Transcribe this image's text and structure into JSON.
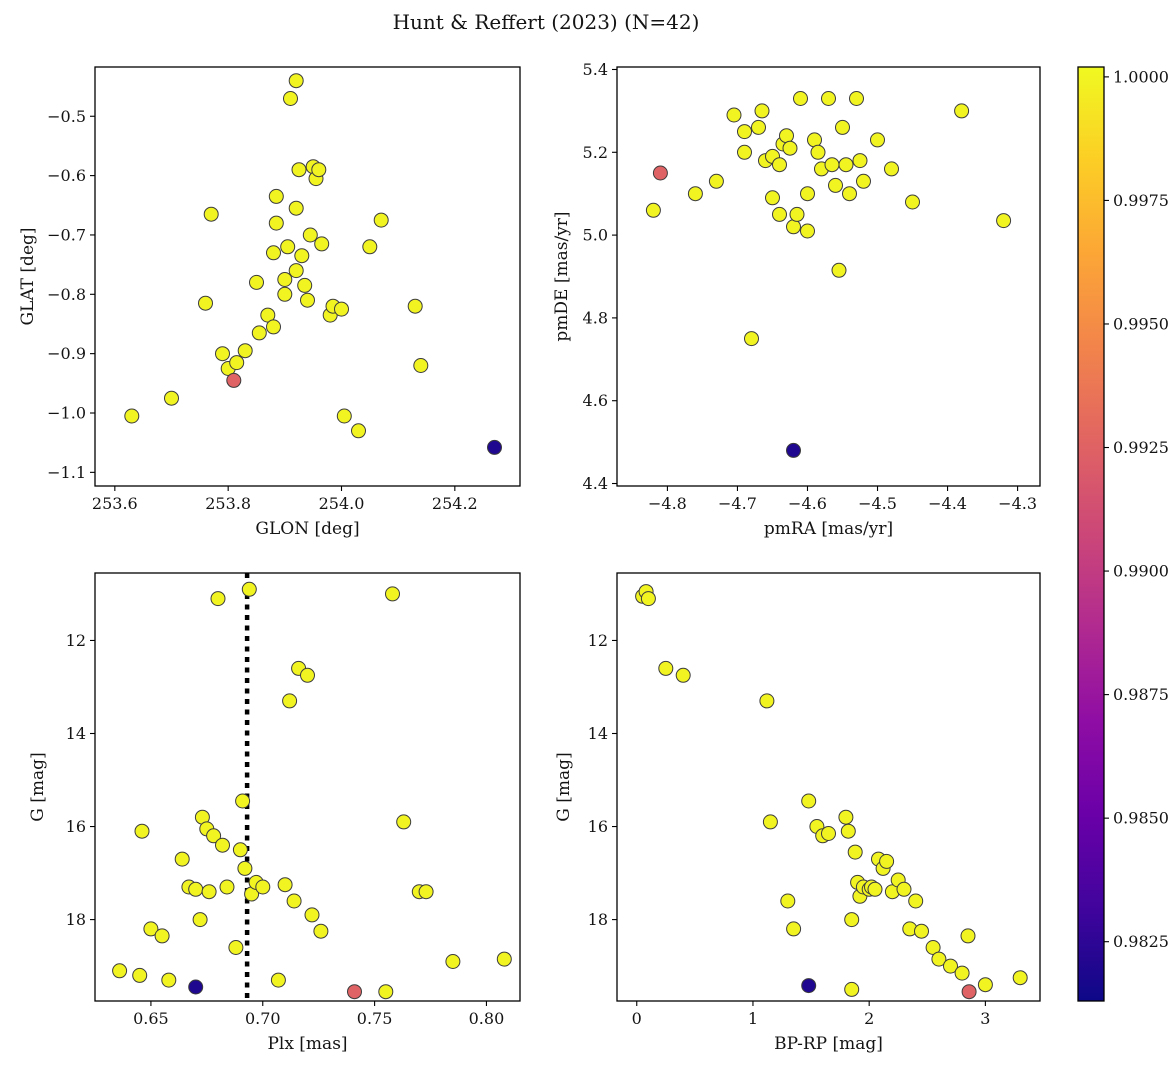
{
  "figure": {
    "title": "Hunt & Reffert (2023) (N=42)"
  },
  "chart_data": {
    "type": "scatter",
    "title": "Hunt & Reffert (2023) (N=42)",
    "n_stars": 42,
    "colormap": "plasma",
    "marker_edge_color": "#3c3c3c",
    "colorbar": {
      "vmin": 0.9813,
      "vmax": 1.0002,
      "tick_values": [
        1.0,
        0.9975,
        0.995,
        0.9925,
        0.99,
        0.9875,
        0.985,
        0.9825
      ],
      "tick_labels": [
        "1.0000",
        "0.9975",
        "0.9950",
        "0.9925",
        "0.9900",
        "0.9875",
        "0.9850",
        "0.9825"
      ]
    },
    "membership_prob": [
      1.0,
      1.0,
      1.0,
      1.0,
      1.0,
      1.0,
      1.0,
      1.0,
      1.0,
      1.0,
      1.0,
      1.0,
      1.0,
      1.0,
      1.0,
      1.0,
      1.0,
      1.0,
      1.0,
      1.0,
      1.0,
      1.0,
      1.0,
      1.0,
      1.0,
      1.0,
      1.0,
      1.0,
      1.0,
      1.0,
      1.0,
      1.0,
      1.0,
      1.0,
      1.0,
      1.0,
      1.0,
      1.0,
      1.0,
      1.0,
      0.9925,
      0.982
    ],
    "panels": [
      {
        "name": "glat-vs-glon",
        "xlabel": "GLON [deg]",
        "ylabel": "GLAT [deg]",
        "xlim": [
          253.565,
          254.315
        ],
        "ylim_bottom_top": [
          -1.123,
          -0.417
        ],
        "xtick_values": [
          253.6,
          253.8,
          254.0,
          254.2
        ],
        "xtick_labels": [
          "253.6",
          "253.8",
          "254.0",
          "254.2"
        ],
        "ytick_values": [
          -1.1,
          -1.0,
          -0.9,
          -0.8,
          -0.7,
          -0.6,
          -0.5
        ],
        "ytick_labels": [
          "−1.1",
          "−1.0",
          "−0.9",
          "−0.8",
          "−0.7",
          "−0.6",
          "−0.5"
        ],
        "x": [
          253.63,
          253.7,
          253.76,
          253.77,
          253.79,
          253.8,
          253.815,
          253.83,
          253.855,
          253.87,
          253.88,
          253.88,
          253.885,
          253.9,
          253.9,
          253.905,
          253.91,
          253.92,
          253.92,
          253.925,
          253.93,
          253.935,
          253.94,
          253.95,
          253.955,
          253.96,
          253.965,
          253.98,
          253.985,
          254.0,
          254.005,
          254.03,
          254.05,
          254.07,
          254.13,
          254.14,
          253.85,
          253.92,
          253.945,
          253.885,
          253.81,
          254.27
        ],
        "y": [
          -1.005,
          -0.975,
          -0.815,
          -0.665,
          -0.9,
          -0.925,
          -0.915,
          -0.895,
          -0.865,
          -0.835,
          -0.855,
          -0.73,
          -0.635,
          -0.775,
          -0.8,
          -0.72,
          -0.47,
          -0.44,
          -0.655,
          -0.59,
          -0.735,
          -0.785,
          -0.81,
          -0.585,
          -0.605,
          -0.59,
          -0.715,
          -0.835,
          -0.82,
          -0.825,
          -1.005,
          -1.03,
          -0.72,
          -0.675,
          -0.82,
          -0.92,
          -0.78,
          -0.76,
          -0.7,
          -0.68,
          -0.945,
          -1.058
        ]
      },
      {
        "name": "pmde-vs-pmra",
        "xlabel": "pmRA [mas/yr]",
        "ylabel": "pmDE [mas/yr]",
        "xlim": [
          -4.872,
          -4.268
        ],
        "ylim_bottom_top": [
          4.394,
          5.406
        ],
        "xtick_values": [
          -4.8,
          -4.7,
          -4.6,
          -4.5,
          -4.4,
          -4.3
        ],
        "xtick_labels": [
          "−4.8",
          "−4.7",
          "−4.6",
          "−4.5",
          "−4.4",
          "−4.3"
        ],
        "ytick_values": [
          4.4,
          4.6,
          4.8,
          5.0,
          5.2,
          5.4
        ],
        "ytick_labels": [
          "4.4",
          "4.6",
          "4.8",
          "5.0",
          "5.2",
          "5.4"
        ],
        "x": [
          -4.82,
          -4.76,
          -4.73,
          -4.705,
          -4.69,
          -4.69,
          -4.68,
          -4.67,
          -4.665,
          -4.66,
          -4.65,
          -4.65,
          -4.64,
          -4.64,
          -4.635,
          -4.63,
          -4.625,
          -4.62,
          -4.615,
          -4.61,
          -4.6,
          -4.6,
          -4.59,
          -4.585,
          -4.58,
          -4.57,
          -4.565,
          -4.56,
          -4.555,
          -4.55,
          -4.545,
          -4.54,
          -4.53,
          -4.525,
          -4.52,
          -4.5,
          -4.48,
          -4.45,
          -4.38,
          -4.32,
          -4.81,
          -4.62
        ],
        "y": [
          5.06,
          5.1,
          5.13,
          5.29,
          5.25,
          5.2,
          4.75,
          5.26,
          5.3,
          5.18,
          5.19,
          5.09,
          5.17,
          5.05,
          5.22,
          5.24,
          5.21,
          5.02,
          5.05,
          5.33,
          5.01,
          5.1,
          5.23,
          5.2,
          5.16,
          5.33,
          5.17,
          5.12,
          4.915,
          5.26,
          5.17,
          5.1,
          5.33,
          5.18,
          5.13,
          5.23,
          5.16,
          5.08,
          5.3,
          5.035,
          5.15,
          4.48
        ]
      },
      {
        "name": "g-vs-plx",
        "xlabel": "Plx [mas]",
        "ylabel": "G [mag]",
        "xlim": [
          0.625,
          0.815
        ],
        "ylim_bottom_top": [
          19.75,
          10.55
        ],
        "vline_x": 0.693,
        "xtick_values": [
          0.65,
          0.7,
          0.75,
          0.8
        ],
        "xtick_labels": [
          "0.65",
          "0.70",
          "0.75",
          "0.80"
        ],
        "ytick_values": [
          12,
          14,
          16,
          18
        ],
        "ytick_labels": [
          "12",
          "14",
          "16",
          "18"
        ],
        "x": [
          0.636,
          0.645,
          0.646,
          0.65,
          0.655,
          0.658,
          0.664,
          0.667,
          0.67,
          0.672,
          0.673,
          0.675,
          0.676,
          0.678,
          0.68,
          0.682,
          0.684,
          0.688,
          0.69,
          0.691,
          0.692,
          0.694,
          0.695,
          0.697,
          0.7,
          0.707,
          0.71,
          0.712,
          0.714,
          0.716,
          0.72,
          0.722,
          0.726,
          0.755,
          0.758,
          0.763,
          0.77,
          0.773,
          0.785,
          0.808,
          0.741,
          0.67
        ],
        "y": [
          19.1,
          19.2,
          16.1,
          18.2,
          18.35,
          19.3,
          16.7,
          17.3,
          17.35,
          18.0,
          15.8,
          16.05,
          17.4,
          16.2,
          11.1,
          16.4,
          17.3,
          18.6,
          16.5,
          15.45,
          16.9,
          10.9,
          17.45,
          17.2,
          17.3,
          19.3,
          17.25,
          13.3,
          17.6,
          12.6,
          12.75,
          17.9,
          18.25,
          19.55,
          11.0,
          15.9,
          17.4,
          17.4,
          18.9,
          18.85,
          19.55,
          19.45
        ]
      },
      {
        "name": "g-vs-bprp",
        "xlabel": "BP-RP [mag]",
        "ylabel": "G [mag]",
        "xlim": [
          -0.17,
          3.47
        ],
        "ylim_bottom_top": [
          19.75,
          10.55
        ],
        "xtick_values": [
          0,
          1,
          2,
          3
        ],
        "xtick_labels": [
          "0",
          "1",
          "2",
          "3"
        ],
        "ytick_values": [
          12,
          14,
          16,
          18
        ],
        "ytick_labels": [
          "12",
          "14",
          "16",
          "18"
        ],
        "x": [
          0.05,
          0.08,
          0.1,
          0.25,
          0.4,
          1.12,
          1.15,
          1.3,
          1.35,
          1.48,
          1.55,
          1.6,
          1.65,
          1.8,
          1.82,
          1.85,
          1.85,
          1.88,
          1.9,
          1.92,
          1.95,
          2.0,
          2.02,
          2.05,
          2.08,
          2.12,
          2.15,
          2.2,
          2.25,
          2.3,
          2.35,
          2.4,
          2.45,
          2.55,
          2.6,
          2.7,
          2.8,
          2.85,
          3.0,
          3.3,
          2.86,
          1.48
        ],
        "y": [
          11.05,
          10.95,
          11.1,
          12.6,
          12.75,
          13.3,
          15.9,
          17.6,
          18.2,
          15.45,
          16.0,
          16.2,
          16.15,
          15.8,
          16.1,
          18.0,
          19.5,
          16.55,
          17.2,
          17.5,
          17.3,
          17.35,
          17.3,
          17.35,
          16.7,
          16.9,
          16.75,
          17.4,
          17.15,
          17.35,
          18.2,
          17.6,
          18.25,
          18.6,
          18.85,
          19.0,
          19.15,
          18.35,
          19.4,
          19.25,
          19.55,
          19.42
        ]
      }
    ]
  }
}
